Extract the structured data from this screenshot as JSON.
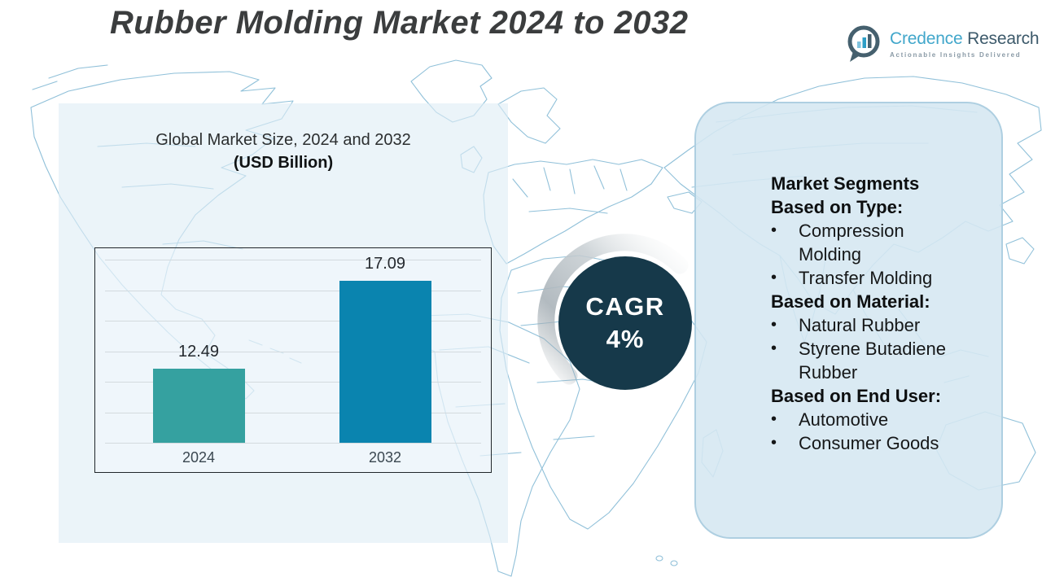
{
  "header": {
    "title": "Rubber Molding Market 2024 to 2032"
  },
  "logo": {
    "name_primary": "Credence",
    "name_secondary": "Research",
    "tagline": "Actionable Insights Delivered",
    "icon": "bar-chart-speech-bubble"
  },
  "chart_data": {
    "type": "bar",
    "title": "Global Market Size, 2024 and 2032",
    "subtitle": "(USD Billion)",
    "categories": [
      "2024",
      "2032"
    ],
    "values": [
      12.49,
      17.09
    ],
    "bar_colors": [
      "#35a1a0",
      "#0a84af"
    ],
    "ylabel": "",
    "xlabel": "",
    "ylim": [
      8.6,
      18.2
    ],
    "gridline_count": 7,
    "grid": true,
    "legend": "none"
  },
  "cagr": {
    "label": "CAGR",
    "value": "4%"
  },
  "segments": {
    "title": "Market Segments",
    "bullet": "•",
    "sections": [
      {
        "heading": "Based on Type:",
        "items": [
          "Compression Molding",
          "Transfer Molding"
        ]
      },
      {
        "heading": "Based on Material:",
        "items": [
          "Natural Rubber",
          "Styrene Butadiene Rubber"
        ]
      },
      {
        "heading": "Based on End User:",
        "items": [
          "Automotive",
          "Consumer Goods"
        ]
      }
    ]
  },
  "colors": {
    "bar_2024": "#35a1a0",
    "bar_2032": "#0a84af",
    "cagr_circle": "#16394a",
    "panel_fill": "#d5e7f1",
    "map_line": "#84bad5",
    "title_text": "#3b3d3e",
    "logo_primary": "#42a7cb",
    "logo_secondary": "#3d5a6b"
  }
}
